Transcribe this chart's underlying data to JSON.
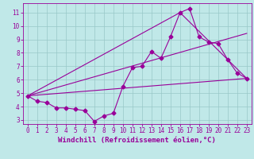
{
  "xlabel": "Windchill (Refroidissement éolien,°C)",
  "xlim": [
    -0.5,
    23.5
  ],
  "ylim": [
    2.7,
    11.7
  ],
  "yticks": [
    3,
    4,
    5,
    6,
    7,
    8,
    9,
    10,
    11
  ],
  "xticks": [
    0,
    1,
    2,
    3,
    4,
    5,
    6,
    7,
    8,
    9,
    10,
    11,
    12,
    13,
    14,
    15,
    16,
    17,
    18,
    19,
    20,
    21,
    22,
    23
  ],
  "bg_color": "#c0e8e8",
  "line_color": "#990099",
  "grid_color": "#98c8c8",
  "line1_x": [
    0,
    1,
    2,
    3,
    4,
    5,
    6,
    7,
    8,
    9,
    10,
    11,
    12,
    13,
    14,
    15,
    16,
    17,
    18,
    19,
    20,
    21,
    22,
    23
  ],
  "line1_y": [
    4.8,
    4.4,
    4.3,
    3.9,
    3.9,
    3.8,
    3.7,
    2.9,
    3.3,
    3.5,
    5.5,
    6.9,
    7.0,
    8.1,
    7.6,
    9.2,
    11.0,
    11.3,
    9.2,
    8.8,
    8.7,
    7.5,
    6.5,
    6.1
  ],
  "line2_x": [
    0,
    23
  ],
  "line2_y": [
    4.8,
    6.1
  ],
  "line3_x": [
    0,
    16,
    23
  ],
  "line3_y": [
    4.8,
    11.0,
    6.1
  ],
  "line4_x": [
    0,
    23
  ],
  "line4_y": [
    4.8,
    9.45
  ],
  "markersize": 2.5,
  "linewidth": 0.8,
  "tick_fontsize": 5.5,
  "xlabel_fontsize": 6.5
}
